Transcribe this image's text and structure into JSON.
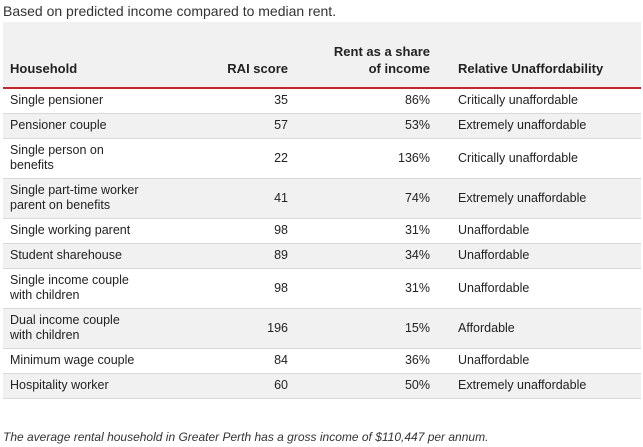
{
  "subtitle": "Based on predicted income compared to median rent.",
  "table": {
    "headers": {
      "household": "Household",
      "rai": "RAI score",
      "share_line1": "Rent as a share",
      "share_line2": "of income",
      "relative": "Relative Unaffordability"
    },
    "rows": [
      {
        "household_l1": "Single pensioner",
        "household_l2": "",
        "rai": "35",
        "share": "86%",
        "relative": "Critically unaffordable"
      },
      {
        "household_l1": "Pensioner couple",
        "household_l2": "",
        "rai": "57",
        "share": "53%",
        "relative": "Extremely unaffordable"
      },
      {
        "household_l1": "Single person on",
        "household_l2": "benefits",
        "rai": "22",
        "share": "136%",
        "relative": "Critically unaffordable"
      },
      {
        "household_l1": "Single part-time worker",
        "household_l2": "parent on benefits",
        "rai": "41",
        "share": "74%",
        "relative": "Extremely unaffordable"
      },
      {
        "household_l1": "Single working parent",
        "household_l2": "",
        "rai": "98",
        "share": "31%",
        "relative": "Unaffordable"
      },
      {
        "household_l1": "Student sharehouse",
        "household_l2": "",
        "rai": "89",
        "share": "34%",
        "relative": "Unaffordable"
      },
      {
        "household_l1": "Single income couple",
        "household_l2": "with children",
        "rai": "98",
        "share": "31%",
        "relative": "Unaffordable"
      },
      {
        "household_l1": "Dual income couple",
        "household_l2": "with children",
        "rai": "196",
        "share": "15%",
        "relative": "Affordable"
      },
      {
        "household_l1": "Minimum wage couple",
        "household_l2": "",
        "rai": "84",
        "share": "36%",
        "relative": "Unaffordable"
      },
      {
        "household_l1": "Hospitality worker",
        "household_l2": "",
        "rai": "60",
        "share": "50%",
        "relative": "Extremely unaffordable"
      }
    ]
  },
  "footnote": "The average rental household in Greater Perth has a gross income of $110,447 per annum.",
  "colors": {
    "header_rule": "#c4262e",
    "stripe": "#f1f1f1"
  }
}
